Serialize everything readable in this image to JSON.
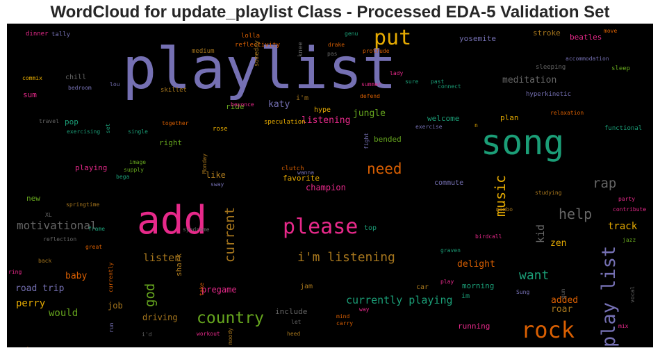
{
  "chart_data": {
    "type": "wordcloud",
    "title": "WordCloud for update_playlist Class - Processed EDA-5 Validation Set",
    "background": "#000000",
    "palette": [
      "#1b9e77",
      "#d95f02",
      "#7570b3",
      "#e7298a",
      "#66a61e",
      "#e6ab02",
      "#a6761d",
      "#666666"
    ],
    "words": [
      {
        "text": "playlist",
        "color": "#7570b3"
      },
      {
        "text": "add",
        "color": "#e7298a"
      },
      {
        "text": "song",
        "color": "#1b9e77"
      },
      {
        "text": "put",
        "color": "#e6ab02"
      },
      {
        "text": "please",
        "color": "#e7298a"
      },
      {
        "text": "rock",
        "color": "#d95f02"
      },
      {
        "text": "play list",
        "color": "#7570b3"
      },
      {
        "text": "country",
        "color": "#66a61e"
      },
      {
        "text": "need",
        "color": "#d95f02"
      },
      {
        "text": "music",
        "color": "#e6ab02"
      },
      {
        "text": "current",
        "color": "#a6761d"
      },
      {
        "text": "i'm listening",
        "color": "#a6761d"
      },
      {
        "text": "motivational",
        "color": "#666666"
      },
      {
        "text": "help",
        "color": "#666666"
      },
      {
        "text": "rap",
        "color": "#666666"
      },
      {
        "text": "god",
        "color": "#66a61e"
      },
      {
        "text": "want",
        "color": "#1b9e77"
      },
      {
        "text": "katy",
        "color": "#7570b3"
      },
      {
        "text": "currently playing",
        "color": "#1b9e77"
      },
      {
        "text": "meditation",
        "color": "#666666"
      },
      {
        "text": "listen",
        "color": "#a6761d"
      },
      {
        "text": "jungle",
        "color": "#66a61e"
      },
      {
        "text": "listening",
        "color": "#e7298a"
      },
      {
        "text": "champion",
        "color": "#e7298a"
      },
      {
        "text": "track",
        "color": "#e6ab02"
      },
      {
        "text": "kid",
        "color": "#666666"
      },
      {
        "text": "zen",
        "color": "#e6ab02"
      },
      {
        "text": "perry",
        "color": "#e6ab02"
      },
      {
        "text": "would",
        "color": "#66a61e"
      },
      {
        "text": "road trip",
        "color": "#7570b3"
      },
      {
        "text": "baby",
        "color": "#d95f02"
      },
      {
        "text": "added",
        "color": "#d95f02"
      },
      {
        "text": "roar",
        "color": "#a6761d"
      },
      {
        "text": "delight",
        "color": "#d95f02"
      },
      {
        "text": "welcome",
        "color": "#1b9e77"
      },
      {
        "text": "plan",
        "color": "#e6ab02"
      },
      {
        "text": "shark",
        "color": "#a6761d"
      },
      {
        "text": "running",
        "color": "#e7298a"
      },
      {
        "text": "pregame",
        "color": "#e7298a"
      },
      {
        "text": "driving",
        "color": "#a6761d"
      },
      {
        "text": "job",
        "color": "#a6761d"
      },
      {
        "text": "like",
        "color": "#a6761d"
      },
      {
        "text": "right",
        "color": "#66a61e"
      },
      {
        "text": "favorite",
        "color": "#e6ab02"
      },
      {
        "text": "playing",
        "color": "#e7298a"
      },
      {
        "text": "ride",
        "color": "#66a61e"
      },
      {
        "text": "include",
        "color": "#666666"
      },
      {
        "text": "yosemite",
        "color": "#7570b3"
      },
      {
        "text": "stroke",
        "color": "#a6761d"
      },
      {
        "text": "beatles",
        "color": "#e7298a"
      },
      {
        "text": "top",
        "color": "#1b9e77"
      },
      {
        "text": "morning",
        "color": "#1b9e77"
      },
      {
        "text": "jam",
        "color": "#a6761d"
      },
      {
        "text": "car",
        "color": "#a6761d"
      },
      {
        "text": "im",
        "color": "#1b9e77"
      },
      {
        "text": "commute",
        "color": "#7570b3"
      },
      {
        "text": "bended",
        "color": "#66a61e"
      },
      {
        "text": "pop",
        "color": "#1b9e77"
      },
      {
        "text": "sum",
        "color": "#e7298a"
      },
      {
        "text": "new",
        "color": "#66a61e"
      },
      {
        "text": "chill",
        "color": "#666666"
      },
      {
        "text": "i'm",
        "color": "#a6761d"
      },
      {
        "text": "hype",
        "color": "#e6ab02"
      },
      {
        "text": "dinner",
        "color": "#e7298a"
      },
      {
        "text": "tally",
        "color": "#7570b3"
      },
      {
        "text": "lolla",
        "color": "#d95f02"
      },
      {
        "text": "reflectivity",
        "color": "#d95f02"
      },
      {
        "text": "medium",
        "color": "#a6761d"
      },
      {
        "text": "someday",
        "color": "#a6761d"
      },
      {
        "text": "knee",
        "color": "#666666"
      },
      {
        "text": "genu",
        "color": "#1b9e77"
      },
      {
        "text": "drake",
        "color": "#d95f02"
      },
      {
        "text": "pas",
        "color": "#666666"
      },
      {
        "text": "protrude",
        "color": "#d95f02"
      },
      {
        "text": "move",
        "color": "#d95f02"
      },
      {
        "text": "accommodation",
        "color": "#7570b3"
      },
      {
        "text": "commix",
        "color": "#e6ab02"
      },
      {
        "text": "bedroom",
        "color": "#7570b3"
      },
      {
        "text": "lou",
        "color": "#7570b3"
      },
      {
        "text": "skillet",
        "color": "#a6761d"
      },
      {
        "text": "beyonce",
        "color": "#e7298a"
      },
      {
        "text": "lady",
        "color": "#e7298a"
      },
      {
        "text": "summer",
        "color": "#e7298a"
      },
      {
        "text": "sure",
        "color": "#1b9e77"
      },
      {
        "text": "past",
        "color": "#1b9e77"
      },
      {
        "text": "connect",
        "color": "#1b9e77"
      },
      {
        "text": "defend",
        "color": "#d95f02"
      },
      {
        "text": "sleeping",
        "color": "#666666"
      },
      {
        "text": "sleep",
        "color": "#66a61e"
      },
      {
        "text": "hyperkinetic",
        "color": "#7570b3"
      },
      {
        "text": "relaxation",
        "color": "#d95f02"
      },
      {
        "text": "functional",
        "color": "#1b9e77"
      },
      {
        "text": "travel",
        "color": "#666666"
      },
      {
        "text": "exercising",
        "color": "#1b9e77"
      },
      {
        "text": "single",
        "color": "#1b9e77"
      },
      {
        "text": "together",
        "color": "#d95f02"
      },
      {
        "text": "rose",
        "color": "#e6ab02"
      },
      {
        "text": "speculation",
        "color": "#e6ab02"
      },
      {
        "text": "exercise",
        "color": "#7570b3"
      },
      {
        "text": "n",
        "color": "#e6ab02"
      },
      {
        "text": "fight",
        "color": "#7570b3"
      },
      {
        "text": "set",
        "color": "#1b9e77"
      },
      {
        "text": "image",
        "color": "#66a61e"
      },
      {
        "text": "supply",
        "color": "#66a61e"
      },
      {
        "text": "Monday",
        "color": "#a6761d"
      },
      {
        "text": "clutch",
        "color": "#d95f02"
      },
      {
        "text": "wanna",
        "color": "#7570b3"
      },
      {
        "text": "sway",
        "color": "#7570b3"
      },
      {
        "text": "studying",
        "color": "#a6761d"
      },
      {
        "text": "party",
        "color": "#e7298a"
      },
      {
        "text": "bega",
        "color": "#1b9e77"
      },
      {
        "text": "springtime",
        "color": "#a6761d"
      },
      {
        "text": "mambo",
        "color": "#a6761d"
      },
      {
        "text": "contribute",
        "color": "#e7298a"
      },
      {
        "text": "XL",
        "color": "#666666"
      },
      {
        "text": "frame",
        "color": "#1b9e77"
      },
      {
        "text": "reflection",
        "color": "#666666"
      },
      {
        "text": "great",
        "color": "#d95f02"
      },
      {
        "text": "syndrome",
        "color": "#666666"
      },
      {
        "text": "graven",
        "color": "#1b9e77"
      },
      {
        "text": "birdcall",
        "color": "#e7298a"
      },
      {
        "text": "jazz",
        "color": "#66a61e"
      },
      {
        "text": "back",
        "color": "#a6761d"
      },
      {
        "text": "ring",
        "color": "#e7298a"
      },
      {
        "text": "currently",
        "color": "#d95f02"
      },
      {
        "text": "take",
        "color": "#d95f02"
      },
      {
        "text": "play",
        "color": "#e7298a"
      },
      {
        "text": "Sung",
        "color": "#7570b3"
      },
      {
        "text": "gun",
        "color": "#666666"
      },
      {
        "text": "vocal",
        "color": "#666666"
      },
      {
        "text": "way",
        "color": "#e7298a"
      },
      {
        "text": "mind",
        "color": "#d95f02"
      },
      {
        "text": "carry",
        "color": "#d95f02"
      },
      {
        "text": "let",
        "color": "#666666"
      },
      {
        "text": "heed",
        "color": "#a6761d"
      },
      {
        "text": "mix",
        "color": "#e7298a"
      },
      {
        "text": "run",
        "color": "#7570b3"
      },
      {
        "text": "i'd",
        "color": "#666666"
      },
      {
        "text": "workout",
        "color": "#e7298a"
      },
      {
        "text": "moody",
        "color": "#a6761d"
      },
      {
        "text": "append",
        "color": "#d95f02"
      }
    ]
  }
}
